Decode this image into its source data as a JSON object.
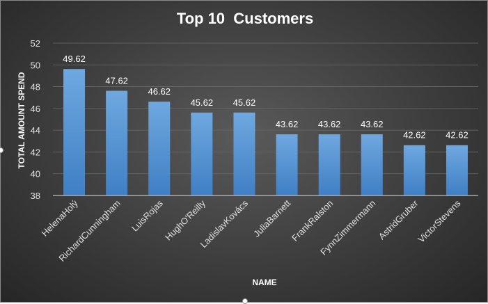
{
  "chart_data": {
    "type": "bar",
    "title": "Top 10  Customers",
    "xlabel": "NAME",
    "ylabel": "TOTAL AMOUNT SPEND",
    "ylim": [
      38,
      52
    ],
    "yticks": [
      38,
      40,
      42,
      44,
      46,
      48,
      50,
      52
    ],
    "grid": true,
    "legend": "none",
    "categories": [
      "HelenaHolý",
      "RichardCunningham",
      "LuisRojas",
      "HughO'Reilly",
      "LadislavKovács",
      "JuliaBarnett",
      "FrankRalston",
      "FynnZimmermann",
      "AstridGruber",
      "VictorStevens"
    ],
    "values": [
      49.62,
      47.62,
      46.62,
      45.62,
      45.62,
      43.62,
      43.62,
      43.62,
      42.62,
      42.62
    ],
    "bar_color": "#5b9bd5",
    "background_color": "#404040",
    "text_color": "#ffffff"
  }
}
